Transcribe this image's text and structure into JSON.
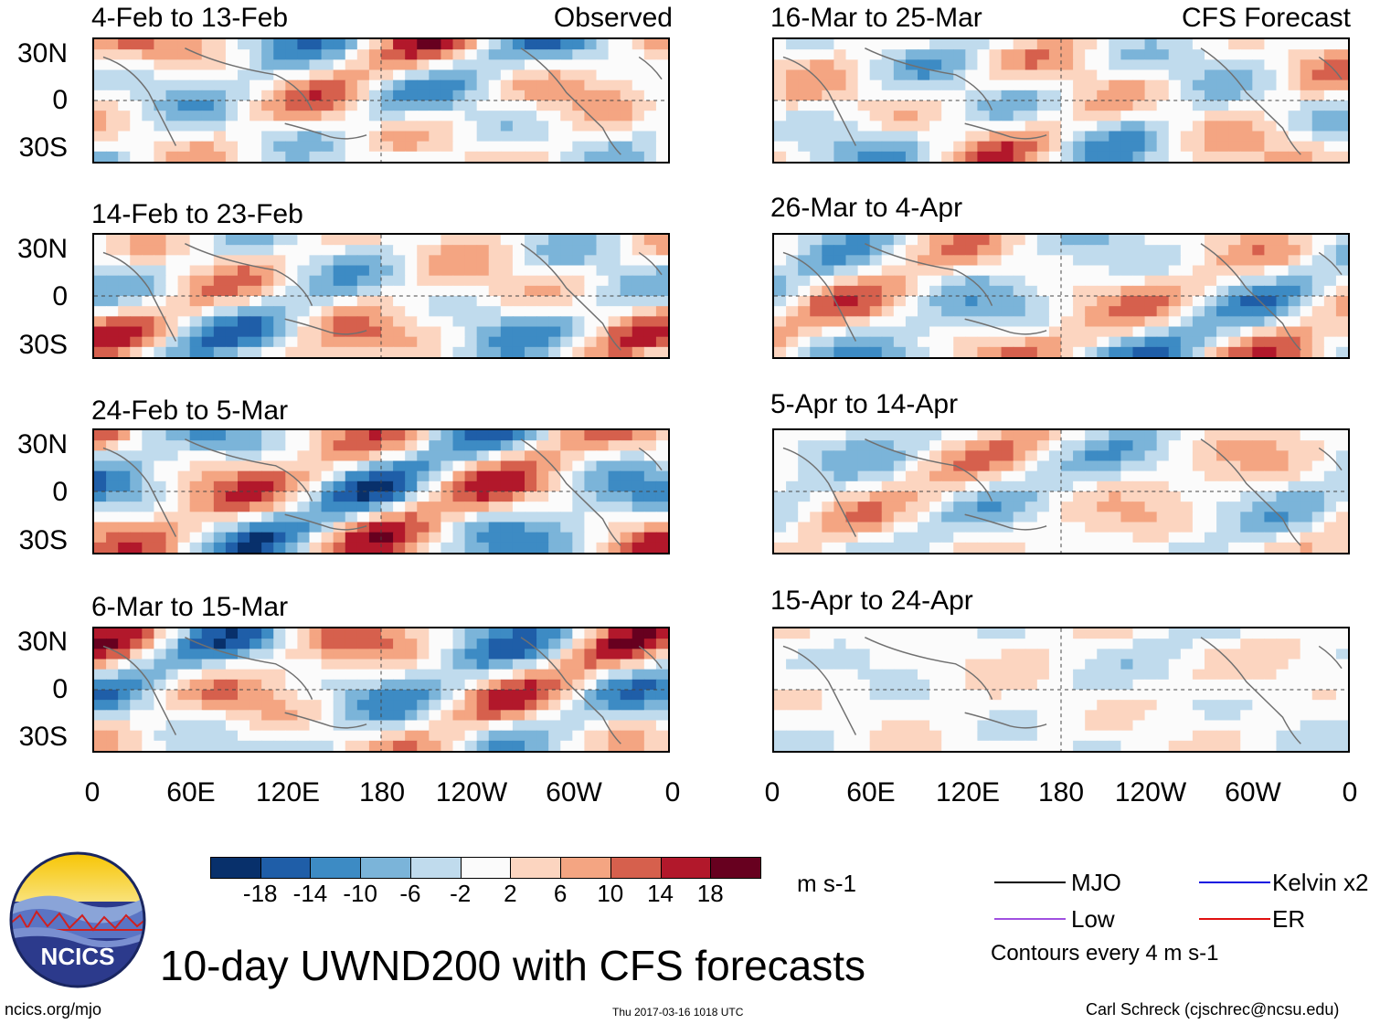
{
  "chart_data": {
    "type": "heatmap",
    "title": "10-day UWND200 with CFS forecasts",
    "variable": "UWND200",
    "units": "m s-1",
    "x_ticks": [
      "0",
      "60E",
      "120E",
      "180",
      "120W",
      "60W",
      "0"
    ],
    "y_ticks": [
      "30N",
      "0",
      "30S"
    ],
    "colorbar": {
      "levels": [
        "-18",
        "-14",
        "-10",
        "-6",
        "-2",
        "2",
        "6",
        "10",
        "14",
        "18"
      ],
      "colors": [
        "#08306b",
        "#1f5ea8",
        "#3d8bc4",
        "#7bb4d9",
        "#c0dbed",
        "#fbfbfb",
        "#fcd5c0",
        "#f4a582",
        "#d6604d",
        "#b2182b",
        "#67001f"
      ]
    },
    "panels_observed": [
      {
        "title": "4-Feb to 13-Feb",
        "label": "Observed"
      },
      {
        "title": "14-Feb to 23-Feb",
        "label": ""
      },
      {
        "title": "24-Feb to 5-Mar",
        "label": ""
      },
      {
        "title": "6-Mar to 15-Mar",
        "label": ""
      }
    ],
    "panels_forecast": [
      {
        "title": "16-Mar to 25-Mar",
        "label": "CFS Forecast"
      },
      {
        "title": "26-Mar to 4-Apr",
        "label": ""
      },
      {
        "title": "5-Apr to 14-Apr",
        "label": ""
      },
      {
        "title": "15-Apr to 24-Apr",
        "label": ""
      }
    ],
    "legend": [
      {
        "name": "MJO",
        "color": "#000000"
      },
      {
        "name": "Kelvin x2",
        "color": "#1010e0"
      },
      {
        "name": "Low",
        "color": "#a050e0"
      },
      {
        "name": "ER",
        "color": "#e01010"
      }
    ],
    "contour_note": "Contours every 4 m s-1"
  },
  "footer": {
    "logo_text": "NCICS",
    "site": "ncics.org/mjo",
    "timestamp": "Thu 2017-03-16 1018 UTC",
    "author": "Carl Schreck (cjschrec@ncsu.edu)"
  }
}
